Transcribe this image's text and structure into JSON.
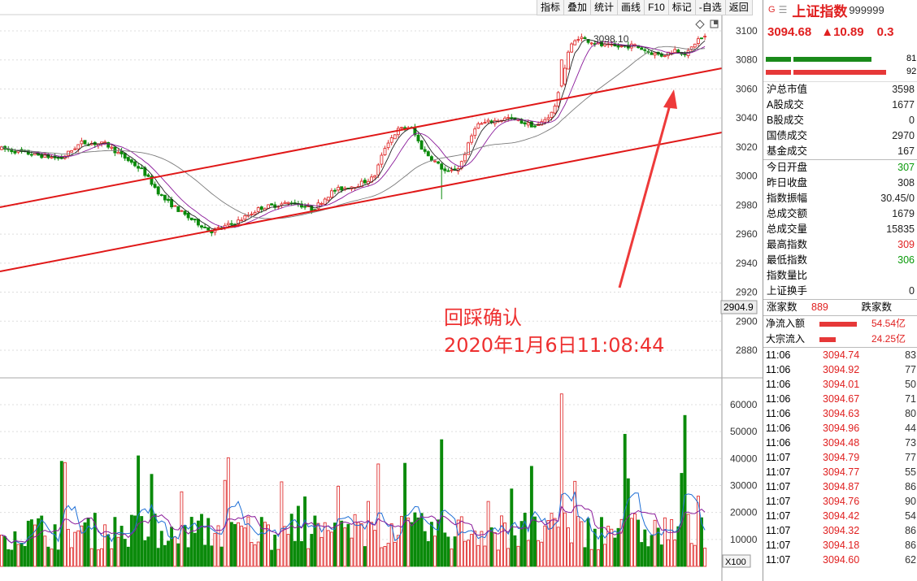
{
  "toolbar": {
    "items": [
      "指标",
      "叠加",
      "统计",
      "画线",
      "F10",
      "标记",
      "-自选",
      "返回"
    ]
  },
  "chart": {
    "highest_label": "3098.10",
    "current_price_marker": "2904.9",
    "volume_unit_label": "X100",
    "price_axis": [
      "3100",
      "3080",
      "3060",
      "3040",
      "3020",
      "3000",
      "2980",
      "2960",
      "2940",
      "2920",
      "2900",
      "2880"
    ],
    "volume_axis": [
      "60000",
      "50000",
      "40000",
      "30000",
      "20000",
      "10000"
    ],
    "annotation_line1": "回踩确认",
    "annotation_line2": "2020年1月6日11:08:44",
    "colors": {
      "up": "#e03030",
      "down": "#0a8a0a",
      "channel": "#e01818",
      "arrow": "#ee3a3a"
    }
  },
  "panel": {
    "g_label": "G",
    "menu_icon": "menu-icon",
    "name": "上证指数",
    "code": "999999",
    "price": "3094.68",
    "change": "▲10.89",
    "change_pct": "0.3",
    "ratio_top": "81",
    "ratio_bottom": "92",
    "stats1": [
      {
        "k": "沪总市值",
        "v": "3598",
        "c": ""
      },
      {
        "k": "A股成交",
        "v": "1677",
        "c": ""
      },
      {
        "k": "B股成交",
        "v": "0",
        "c": ""
      },
      {
        "k": "国债成交",
        "v": "2970",
        "c": ""
      },
      {
        "k": "基金成交",
        "v": "167",
        "c": ""
      }
    ],
    "stats2": [
      {
        "k": "今日开盘",
        "v": "307",
        "c": "g"
      },
      {
        "k": "昨日收盘",
        "v": "308",
        "c": ""
      },
      {
        "k": "指数振幅",
        "v": "30.45/0",
        "c": ""
      },
      {
        "k": "总成交额",
        "v": "1679",
        "c": ""
      },
      {
        "k": "总成交量",
        "v": "15835",
        "c": ""
      },
      {
        "k": "最高指数",
        "v": "309",
        "c": "r"
      },
      {
        "k": "最低指数",
        "v": "306",
        "c": "g"
      },
      {
        "k": "指数量比",
        "v": "",
        "c": ""
      },
      {
        "k": "上证换手",
        "v": "0",
        "c": ""
      }
    ],
    "rise_label": "涨家数",
    "rise_count": "889",
    "fall_label": "跌家数",
    "net_inflow_label": "净流入额",
    "net_inflow_value": "54.54亿",
    "block_inflow_label": "大宗流入",
    "block_inflow_value": "24.25亿",
    "ticks": [
      {
        "t": "11:06",
        "p": "3094.74",
        "v": "83"
      },
      {
        "t": "11:06",
        "p": "3094.92",
        "v": "77"
      },
      {
        "t": "11:06",
        "p": "3094.01",
        "v": "50"
      },
      {
        "t": "11:06",
        "p": "3094.67",
        "v": "71"
      },
      {
        "t": "11:06",
        "p": "3094.63",
        "v": "80"
      },
      {
        "t": "11:06",
        "p": "3094.96",
        "v": "44"
      },
      {
        "t": "11:06",
        "p": "3094.48",
        "v": "73"
      },
      {
        "t": "11:07",
        "p": "3094.79",
        "v": "77"
      },
      {
        "t": "11:07",
        "p": "3094.77",
        "v": "55"
      },
      {
        "t": "11:07",
        "p": "3094.87",
        "v": "86"
      },
      {
        "t": "11:07",
        "p": "3094.76",
        "v": "90"
      },
      {
        "t": "11:07",
        "p": "3094.42",
        "v": "54"
      },
      {
        "t": "11:07",
        "p": "3094.32",
        "v": "86"
      },
      {
        "t": "11:07",
        "p": "3094.18",
        "v": "86"
      },
      {
        "t": "11:07",
        "p": "3094.60",
        "v": "62"
      }
    ]
  }
}
